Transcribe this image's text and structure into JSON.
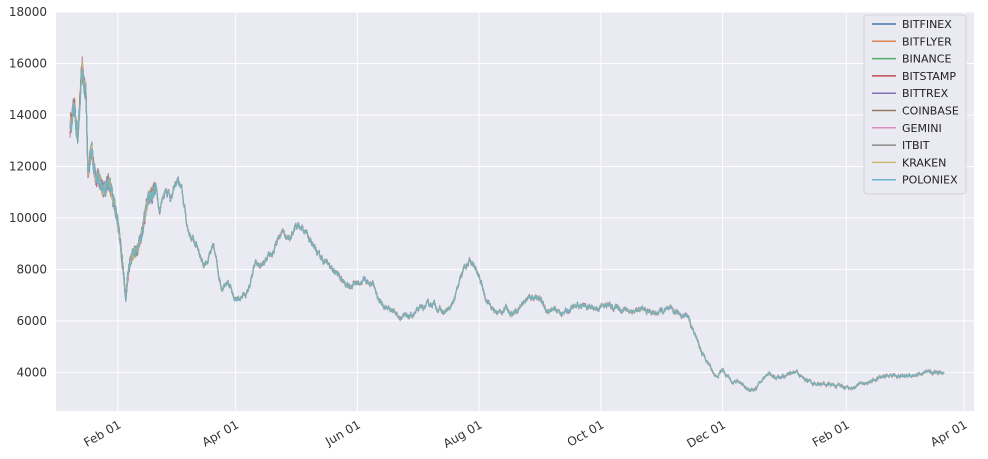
{
  "chart_data": {
    "type": "line",
    "title": "",
    "xlabel": "",
    "ylabel": "",
    "xlim": [
      "2018-01-01",
      "2019-04-06"
    ],
    "ylim": [
      2500,
      18000
    ],
    "grid": true,
    "legend_position": "top-right",
    "x_ticks": [
      {
        "date": "2018-02-01",
        "label": "Feb 01"
      },
      {
        "date": "2018-04-01",
        "label": "Apr 01"
      },
      {
        "date": "2018-06-01",
        "label": "Jun 01"
      },
      {
        "date": "2018-08-01",
        "label": "Aug 01"
      },
      {
        "date": "2018-10-01",
        "label": "Oct 01"
      },
      {
        "date": "2018-12-01",
        "label": "Dec 01"
      },
      {
        "date": "2019-02-01",
        "label": "Feb 01"
      },
      {
        "date": "2019-04-01",
        "label": "Apr 01"
      }
    ],
    "y_ticks": [
      {
        "value": 4000,
        "label": "4000"
      },
      {
        "value": 6000,
        "label": "6000"
      },
      {
        "value": 8000,
        "label": "8000"
      },
      {
        "value": 10000,
        "label": "10000"
      },
      {
        "value": 12000,
        "label": "12000"
      },
      {
        "value": 14000,
        "label": "14000"
      },
      {
        "value": 16000,
        "label": "16000"
      },
      {
        "value": 18000,
        "label": "18000"
      }
    ],
    "x": [
      "2018-01-08",
      "2018-01-10",
      "2018-01-12",
      "2018-01-14",
      "2018-01-16",
      "2018-01-17",
      "2018-01-19",
      "2018-01-21",
      "2018-01-24",
      "2018-01-26",
      "2018-01-28",
      "2018-01-31",
      "2018-02-03",
      "2018-02-05",
      "2018-02-06",
      "2018-02-08",
      "2018-02-11",
      "2018-02-14",
      "2018-02-16",
      "2018-02-20",
      "2018-02-22",
      "2018-02-25",
      "2018-02-28",
      "2018-03-03",
      "2018-03-05",
      "2018-03-08",
      "2018-03-10",
      "2018-03-13",
      "2018-03-16",
      "2018-03-18",
      "2018-03-21",
      "2018-03-25",
      "2018-03-28",
      "2018-03-31",
      "2018-04-03",
      "2018-04-07",
      "2018-04-11",
      "2018-04-14",
      "2018-04-17",
      "2018-04-20",
      "2018-04-24",
      "2018-04-28",
      "2018-05-01",
      "2018-05-05",
      "2018-05-09",
      "2018-05-13",
      "2018-05-17",
      "2018-05-21",
      "2018-05-25",
      "2018-05-29",
      "2018-06-01",
      "2018-06-05",
      "2018-06-09",
      "2018-06-12",
      "2018-06-15",
      "2018-06-18",
      "2018-06-22",
      "2018-06-26",
      "2018-06-30",
      "2018-07-04",
      "2018-07-09",
      "2018-07-14",
      "2018-07-18",
      "2018-07-22",
      "2018-07-25",
      "2018-07-28",
      "2018-08-01",
      "2018-08-04",
      "2018-08-08",
      "2018-08-11",
      "2018-08-14",
      "2018-08-18",
      "2018-08-24",
      "2018-08-30",
      "2018-09-04",
      "2018-09-08",
      "2018-09-12",
      "2018-09-17",
      "2018-09-22",
      "2018-09-28",
      "2018-10-04",
      "2018-10-10",
      "2018-10-16",
      "2018-10-22",
      "2018-10-28",
      "2018-11-03",
      "2018-11-09",
      "2018-11-14",
      "2018-11-16",
      "2018-11-19",
      "2018-11-21",
      "2018-11-25",
      "2018-11-28",
      "2018-12-01",
      "2018-12-05",
      "2018-12-10",
      "2018-12-15",
      "2018-12-18",
      "2018-12-21",
      "2018-12-24",
      "2018-12-28",
      "2019-01-02",
      "2019-01-07",
      "2019-01-10",
      "2019-01-15",
      "2019-01-20",
      "2019-01-25",
      "2019-01-30",
      "2019-02-04",
      "2019-02-08",
      "2019-02-12",
      "2019-02-18",
      "2019-02-24",
      "2019-03-01",
      "2019-03-06",
      "2019-03-12",
      "2019-03-18",
      "2019-03-22"
    ],
    "y": [
      13500,
      14400,
      13200,
      15600,
      14800,
      11800,
      12800,
      11600,
      11300,
      11200,
      11400,
      10200,
      8500,
      7000,
      7800,
      8500,
      8700,
      9800,
      10800,
      11200,
      10400,
      11200,
      10800,
      11500,
      11000,
      9600,
      9200,
      8900,
      8200,
      8400,
      8800,
      7300,
      7700,
      6800,
      6900,
      7100,
      8200,
      8100,
      8300,
      8700,
      9400,
      9300,
      9800,
      9600,
      9100,
      8500,
      8200,
      7900,
      7500,
      7400,
      7500,
      7600,
      7400,
      6800,
      6500,
      6500,
      6200,
      6100,
      6300,
      6500,
      6700,
      6300,
      6500,
      7400,
      8100,
      8300,
      7700,
      7000,
      6400,
      6300,
      6500,
      6300,
      6800,
      7000,
      6400,
      6400,
      6300,
      6500,
      6600,
      6500,
      6600,
      6500,
      6400,
      6400,
      6300,
      6400,
      6300,
      6200,
      5700,
      5100,
      4700,
      4200,
      3800,
      4100,
      3700,
      3600,
      3300,
      3400,
      3700,
      4000,
      3800,
      3850,
      4000,
      3800,
      3600,
      3550,
      3500,
      3450,
      3400,
      3550,
      3600,
      3800,
      3900,
      3850,
      3900,
      3950,
      4000,
      4050
    ],
    "series": [
      {
        "name": "BITFINEX",
        "color": "#4c72b0"
      },
      {
        "name": "BITFLYER",
        "color": "#dd8452"
      },
      {
        "name": "BINANCE",
        "color": "#55a868"
      },
      {
        "name": "BITSTAMP",
        "color": "#c44e52"
      },
      {
        "name": "BITTREX",
        "color": "#8172b3"
      },
      {
        "name": "COINBASE",
        "color": "#937860"
      },
      {
        "name": "GEMINI",
        "color": "#da8bc3"
      },
      {
        "name": "ITBIT",
        "color": "#8c8c8c"
      },
      {
        "name": "KRAKEN",
        "color": "#ccb974"
      },
      {
        "name": "POLONIEX",
        "color": "#64b5cd"
      }
    ]
  }
}
